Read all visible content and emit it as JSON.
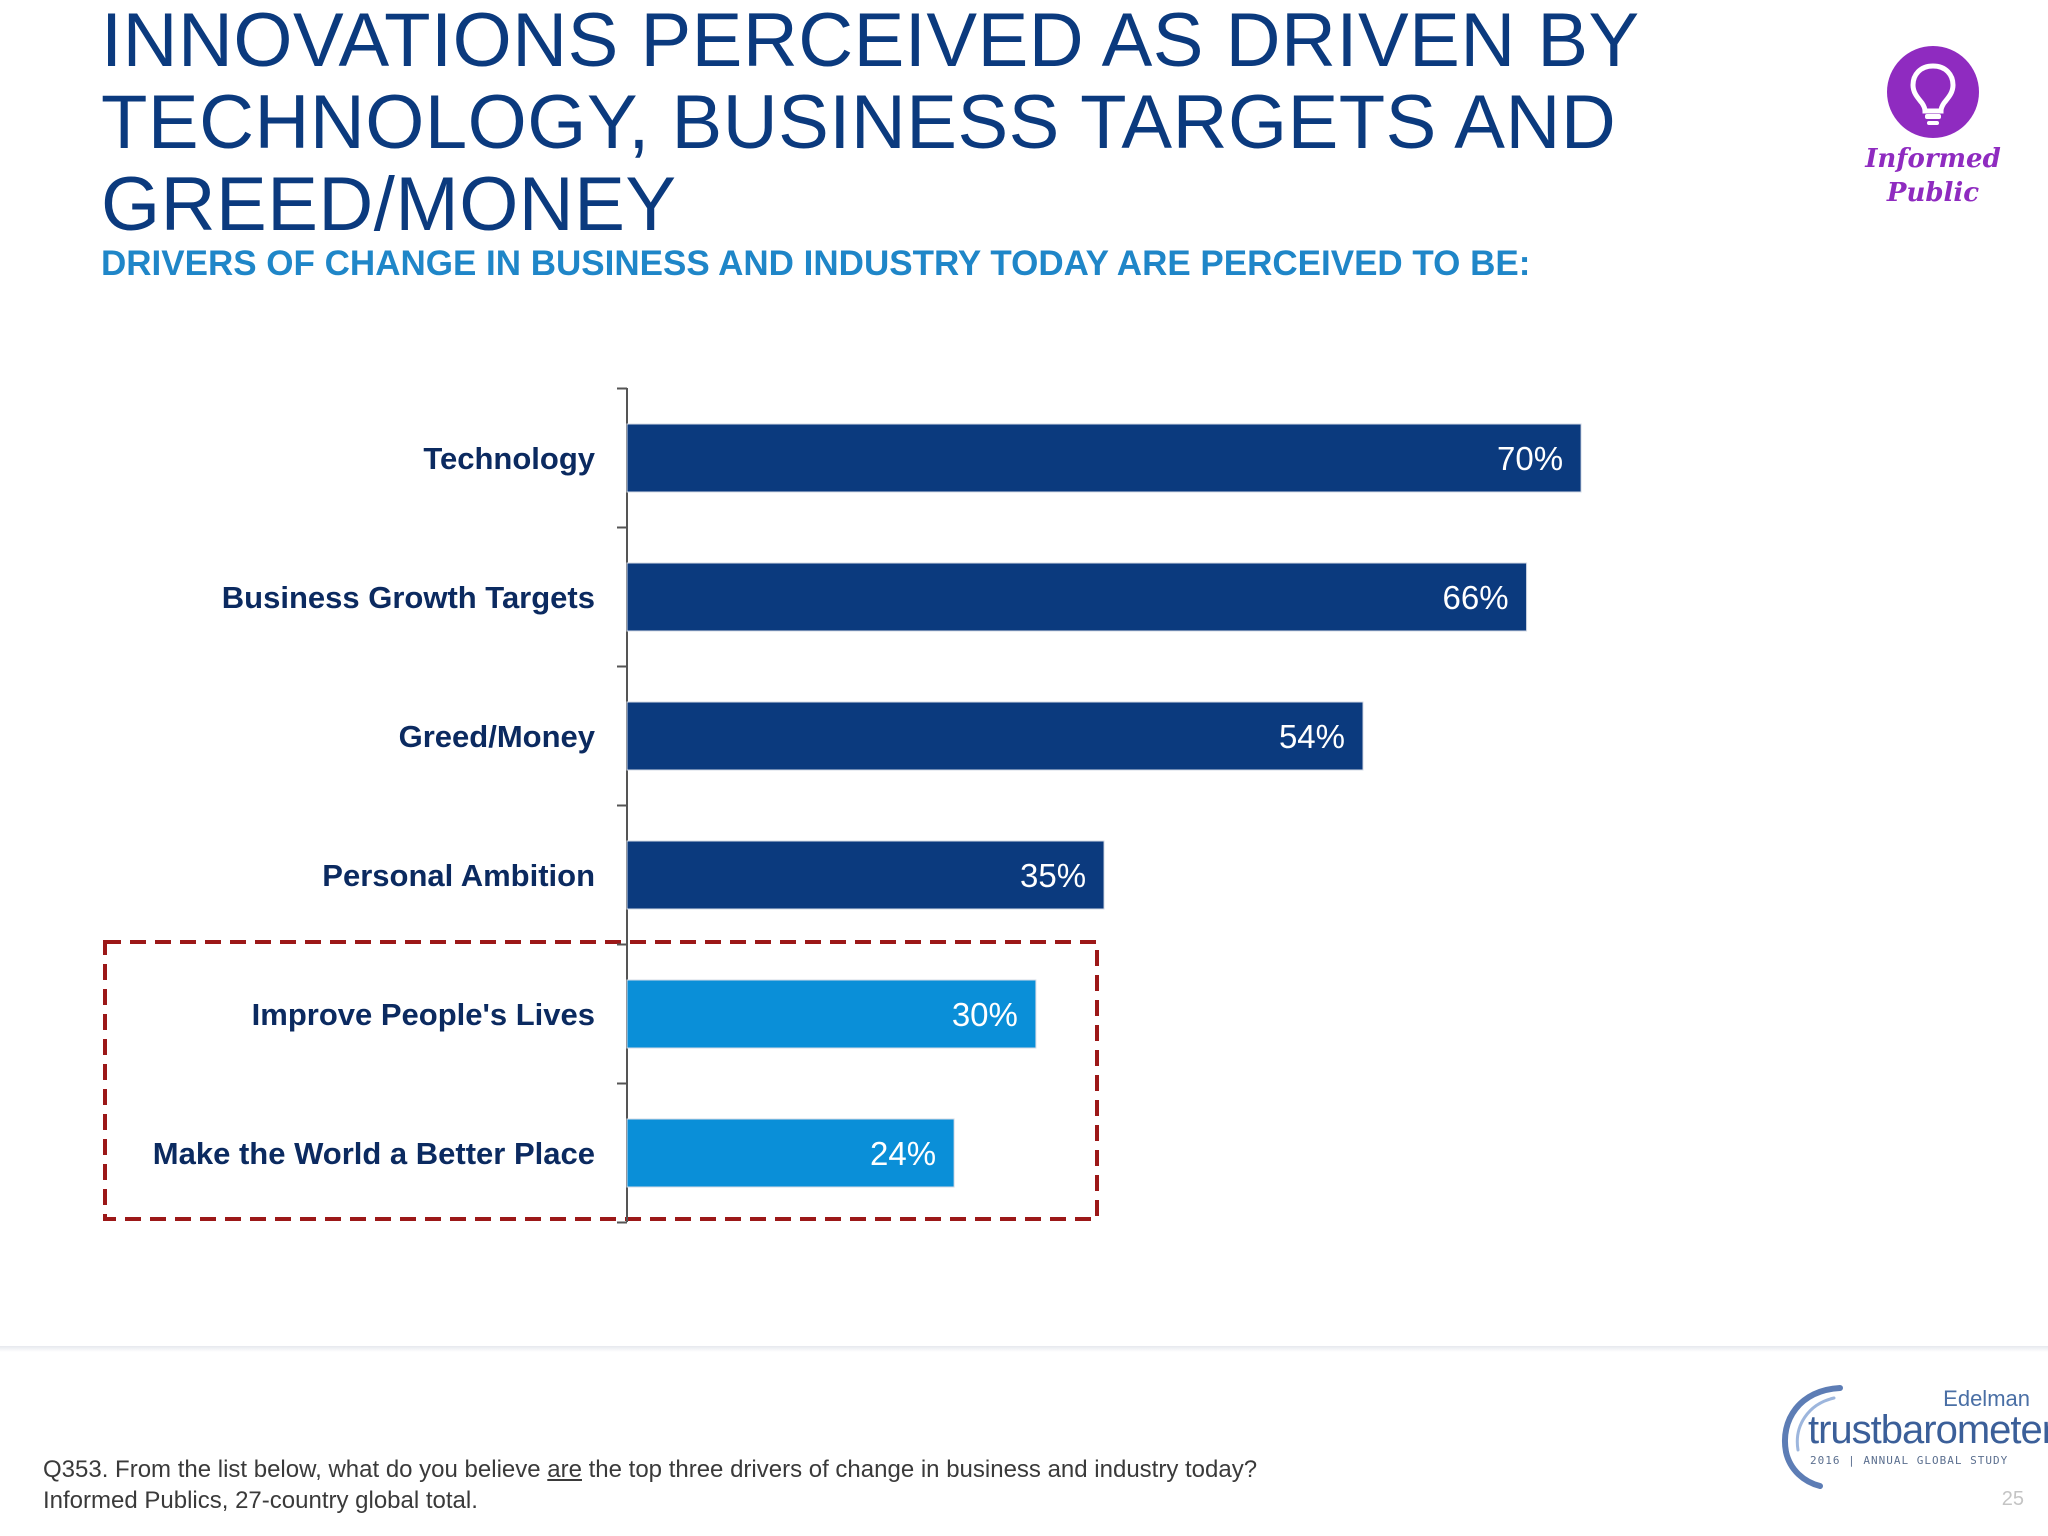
{
  "header": {
    "title": "INNOVATIONS PERCEIVED AS DRIVEN BY TECHNOLOGY, BUSINESS TARGETS AND GREED/MONEY",
    "subtitle": "DRIVERS OF CHANGE IN BUSINESS AND INDUSTRY TODAY ARE PERCEIVED TO BE:"
  },
  "badge": {
    "label": "Informed\nPublic",
    "icon": "lightbulb-icon",
    "color": "#8f2bc0"
  },
  "chart_data": {
    "type": "bar",
    "orientation": "horizontal",
    "categories": [
      "Technology",
      "Business Growth Targets",
      "Greed/Money",
      "Personal Ambition",
      "Improve People's Lives",
      "Make the World a Better Place"
    ],
    "values": [
      70,
      66,
      54,
      35,
      30,
      24
    ],
    "value_labels": [
      "70%",
      "66%",
      "54%",
      "35%",
      "30%",
      "24%"
    ],
    "colors": [
      "#0b3a7e",
      "#0b3a7e",
      "#0b3a7e",
      "#0b3a7e",
      "#0a8fd8",
      "#0a8fd8"
    ],
    "highlight": {
      "categories": [
        "Improve People's Lives",
        "Make the World a Better Place"
      ],
      "style": "dashed-box",
      "color": "#9c1818"
    },
    "xlim": [
      0,
      100
    ],
    "grid": false,
    "legend": "none"
  },
  "footnote": {
    "pre": "Q353. From the list below, what do you believe ",
    "underlined": "are",
    "post": " the top three drivers of change in business and industry today? Informed Publics, 27-country global total."
  },
  "brand": {
    "company": "Edelman",
    "product": "trustbarometer",
    "tagline": "2016 | ANNUAL GLOBAL STUDY"
  },
  "page_number": "25"
}
